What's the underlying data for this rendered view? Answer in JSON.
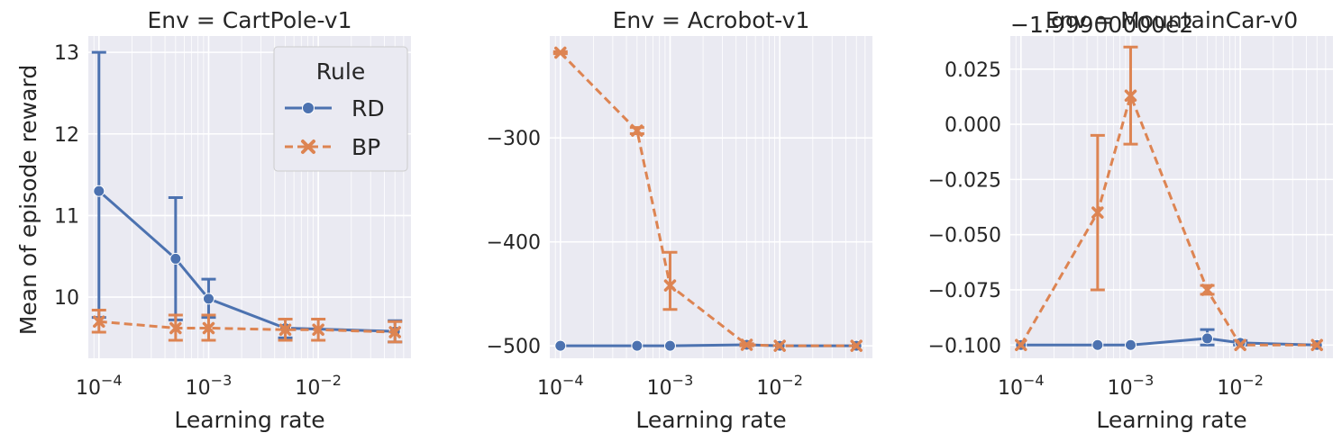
{
  "figure": {
    "xlabel": "Learning rate",
    "ylabel": "Mean of episode reward",
    "legend": {
      "title": "Rule",
      "placement": "upper-right of first panel",
      "entries": [
        {
          "label": "RD",
          "color": "#4c72b0",
          "marker": "circle",
          "linestyle": "solid"
        },
        {
          "label": "BP",
          "color": "#dd8452",
          "marker": "x",
          "linestyle": "dashed"
        }
      ]
    }
  },
  "chart_data": [
    {
      "type": "line",
      "title": "Env = CartPole-v1",
      "xscale": "log",
      "xlim": [
        8e-05,
        0.07
      ],
      "ylim": [
        9.25,
        13.2
      ],
      "xticks": [
        {
          "value": 0.0001,
          "base": "10",
          "exp": "−4"
        },
        {
          "value": 0.001,
          "base": "10",
          "exp": "−3"
        },
        {
          "value": 0.01,
          "base": "10",
          "exp": "−2"
        }
      ],
      "yticks": [
        {
          "value": 10,
          "label": "10"
        },
        {
          "value": 11,
          "label": "11"
        },
        {
          "value": 12,
          "label": "12"
        },
        {
          "value": 13,
          "label": "13"
        }
      ],
      "offset_text": "",
      "grid": true,
      "series": [
        {
          "name": "RD",
          "x": [
            0.0001,
            0.0005,
            0.001,
            0.005,
            0.05
          ],
          "y": [
            11.3,
            10.47,
            9.98,
            9.62,
            9.58
          ],
          "err_low": [
            9.75,
            9.72,
            9.75,
            9.5,
            9.45
          ],
          "err_high": [
            13.0,
            11.22,
            10.22,
            9.73,
            9.71
          ]
        },
        {
          "name": "BP",
          "x": [
            0.0001,
            0.0005,
            0.001,
            0.005,
            0.01,
            0.05
          ],
          "y": [
            9.7,
            9.62,
            9.62,
            9.6,
            9.6,
            9.57
          ],
          "err_low": [
            9.57,
            9.47,
            9.47,
            9.47,
            9.47,
            9.45
          ],
          "err_high": [
            9.84,
            9.78,
            9.78,
            9.73,
            9.73,
            9.7
          ]
        }
      ]
    },
    {
      "type": "line",
      "title": "Env = Acrobot-v1",
      "xscale": "log",
      "xlim": [
        8e-05,
        0.07
      ],
      "ylim": [
        -512,
        -202
      ],
      "xticks": [
        {
          "value": 0.0001,
          "base": "10",
          "exp": "−4"
        },
        {
          "value": 0.001,
          "base": "10",
          "exp": "−3"
        },
        {
          "value": 0.01,
          "base": "10",
          "exp": "−2"
        }
      ],
      "yticks": [
        {
          "value": -500,
          "label": "−500"
        },
        {
          "value": -400,
          "label": "−400"
        },
        {
          "value": -300,
          "label": "−300"
        }
      ],
      "offset_text": "",
      "grid": true,
      "series": [
        {
          "name": "RD",
          "x": [
            0.0001,
            0.0005,
            0.001,
            0.005,
            0.01,
            0.05
          ],
          "y": [
            -500,
            -500,
            -500,
            -499,
            -500,
            -500
          ],
          "err_low": [
            -500,
            -500,
            -500,
            -500,
            -500,
            -500
          ],
          "err_high": [
            -500,
            -500,
            -500,
            -498,
            -500,
            -500
          ]
        },
        {
          "name": "BP",
          "x": [
            0.0001,
            0.0005,
            0.001,
            0.005,
            0.01,
            0.05
          ],
          "y": [
            -218,
            -293,
            -442,
            -499,
            -500,
            -500
          ],
          "err_low": [
            -219,
            -296,
            -465,
            -500,
            -500,
            -500
          ],
          "err_high": [
            -217,
            -290,
            -410,
            -498,
            -500,
            -500
          ]
        }
      ]
    },
    {
      "type": "line",
      "title": "Env = MountainCar-v0",
      "xscale": "log",
      "xlim": [
        8e-05,
        0.07
      ],
      "ylim": [
        -0.106,
        0.04
      ],
      "xticks": [
        {
          "value": 0.0001,
          "base": "10",
          "exp": "−4"
        },
        {
          "value": 0.001,
          "base": "10",
          "exp": "−3"
        },
        {
          "value": 0.01,
          "base": "10",
          "exp": "−2"
        }
      ],
      "yticks": [
        {
          "value": -0.1,
          "label": "−0.100"
        },
        {
          "value": -0.075,
          "label": "−0.075"
        },
        {
          "value": -0.05,
          "label": "−0.050"
        },
        {
          "value": -0.025,
          "label": "−0.025"
        },
        {
          "value": 0.0,
          "label": "0.000"
        },
        {
          "value": 0.025,
          "label": "0.025"
        }
      ],
      "offset_text": "−1.99900000e2",
      "grid": true,
      "series": [
        {
          "name": "RD",
          "x": [
            0.0001,
            0.0005,
            0.001,
            0.005,
            0.01,
            0.05
          ],
          "y": [
            -0.1,
            -0.1,
            -0.1,
            -0.097,
            -0.099,
            -0.1
          ],
          "err_low": [
            -0.1,
            -0.1,
            -0.1,
            -0.1,
            -0.1,
            -0.1
          ],
          "err_high": [
            -0.1,
            -0.1,
            -0.1,
            -0.093,
            -0.098,
            -0.1
          ]
        },
        {
          "name": "BP",
          "x": [
            0.0001,
            0.0005,
            0.001,
            0.005,
            0.01,
            0.05
          ],
          "y": [
            -0.1,
            -0.04,
            0.013,
            -0.075,
            -0.1,
            -0.1
          ],
          "err_low": [
            -0.1,
            -0.075,
            -0.009,
            -0.077,
            -0.1,
            -0.1
          ],
          "err_high": [
            -0.1,
            -0.005,
            0.035,
            -0.073,
            -0.1,
            -0.1
          ]
        }
      ]
    }
  ]
}
